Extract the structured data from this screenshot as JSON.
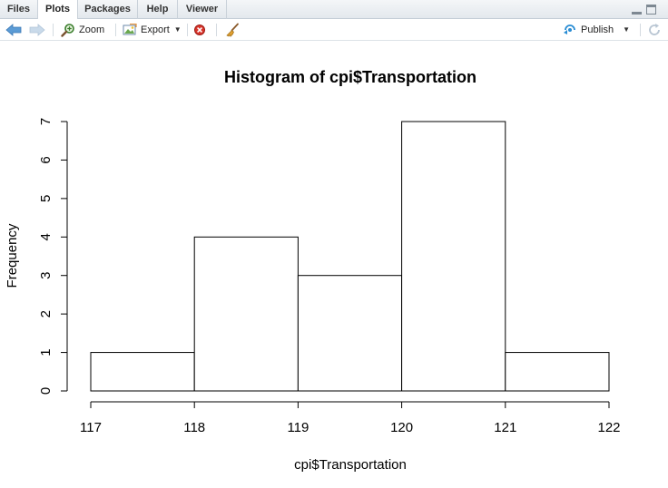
{
  "tabs": [
    "Files",
    "Plots",
    "Packages",
    "Help",
    "Viewer"
  ],
  "active_tab": "Plots",
  "toolbar": {
    "zoom_label": "Zoom",
    "export_label": "Export",
    "publish_label": "Publish"
  },
  "icons": {
    "back": "back-arrow-icon",
    "forward": "forward-arrow-icon",
    "zoom": "zoom-icon",
    "export": "export-icon",
    "remove": "remove-plot-icon",
    "clear": "broom-icon",
    "publish": "publish-icon",
    "refresh": "refresh-icon"
  },
  "chart_data": {
    "type": "bar",
    "title": "Histogram of cpi$Transportation",
    "xlabel": "cpi$Transportation",
    "ylabel": "Frequency",
    "bin_edges": [
      117,
      118,
      119,
      120,
      121,
      122
    ],
    "values": [
      1,
      4,
      3,
      7,
      1
    ],
    "xlim": [
      117,
      122
    ],
    "ylim": [
      0,
      7
    ],
    "x_ticks": [
      "117",
      "118",
      "119",
      "120",
      "121",
      "122"
    ],
    "y_ticks": [
      "0",
      "1",
      "2",
      "3",
      "4",
      "5",
      "6",
      "7"
    ],
    "grid": false
  }
}
